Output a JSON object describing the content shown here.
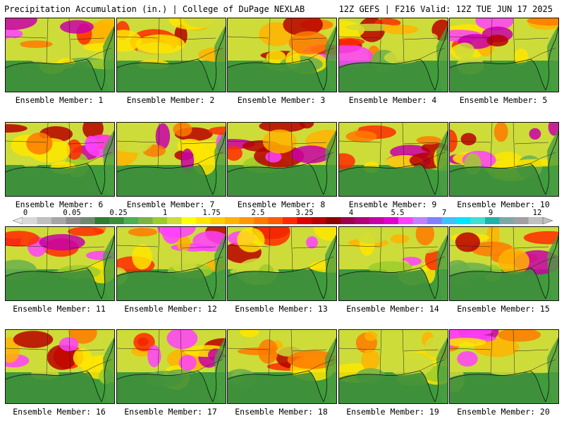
{
  "header": {
    "left_title": "Precipitation Accumulation (in.) | College of DuPage NEXLAB",
    "right_title": "12Z GEFS | F216 Valid: 12Z TUE JUN 17 2025"
  },
  "panels": [
    {
      "label": "Ensemble Member: 1"
    },
    {
      "label": "Ensemble Member: 2"
    },
    {
      "label": "Ensemble Member: 3"
    },
    {
      "label": "Ensemble Member: 4"
    },
    {
      "label": "Ensemble Member: 5"
    },
    {
      "label": "Ensemble Member: 6"
    },
    {
      "label": "Ensemble Member: 7"
    },
    {
      "label": "Ensemble Member: 8"
    },
    {
      "label": "Ensemble Member: 9"
    },
    {
      "label": "Ensemble Member: 10"
    },
    {
      "label": "Ensemble Member: 11"
    },
    {
      "label": "Ensemble Member: 12"
    },
    {
      "label": "Ensemble Member: 13"
    },
    {
      "label": "Ensemble Member: 14"
    },
    {
      "label": "Ensemble Member: 15"
    },
    {
      "label": "Ensemble Member: 16"
    },
    {
      "label": "Ensemble Member: 17"
    },
    {
      "label": "Ensemble Member: 18"
    },
    {
      "label": "Ensemble Member: 19"
    },
    {
      "label": "Ensemble Member: 20"
    }
  ],
  "colorbar": {
    "tick_labels": [
      "0",
      "0.05",
      "0.25",
      "1",
      "1.75",
      "2.5",
      "3.25",
      "4",
      "5.5",
      "7",
      "9",
      "12"
    ],
    "colors": [
      "#d8d8d8",
      "#bfbfbf",
      "#a6a6a6",
      "#8c8c8c",
      "#6e8a6e",
      "#2e7d32",
      "#388e3c",
      "#4caf50",
      "#7cb342",
      "#9ccc2c",
      "#cddc39",
      "#ffff00",
      "#ffe600",
      "#ffcc00",
      "#ffb300",
      "#ff9800",
      "#ff7a00",
      "#ff5a00",
      "#ff2a00",
      "#e00000",
      "#b80000",
      "#8b0000",
      "#9c004c",
      "#b0007a",
      "#c800a8",
      "#e000d0",
      "#ff40ff",
      "#c080ff",
      "#8080ff",
      "#40c0ff",
      "#00e5ff",
      "#40e0d0",
      "#20b2aa",
      "#7fa7a7",
      "#a0a0a0",
      "#c0c0c0"
    ]
  }
}
